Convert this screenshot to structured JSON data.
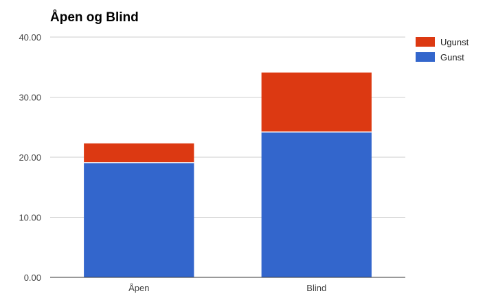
{
  "chart_data": {
    "type": "bar",
    "stacked": true,
    "title": "Åpen og Blind",
    "categories": [
      "Åpen",
      "Blind"
    ],
    "series": [
      {
        "name": "Gunst",
        "values": [
          19.1,
          24.2
        ],
        "color": "#3366cc"
      },
      {
        "name": "Ugunst",
        "values": [
          3.2,
          9.9
        ],
        "color": "#dc3912"
      }
    ],
    "ylim": [
      0,
      40
    ],
    "yticks": [
      "0.00",
      "10.00",
      "20.00",
      "30.00",
      "40.00"
    ],
    "ytick_values": [
      0,
      10,
      20,
      30,
      40
    ],
    "grid": true,
    "legend_position": "right",
    "legend_order": [
      "Ugunst",
      "Gunst"
    ]
  }
}
